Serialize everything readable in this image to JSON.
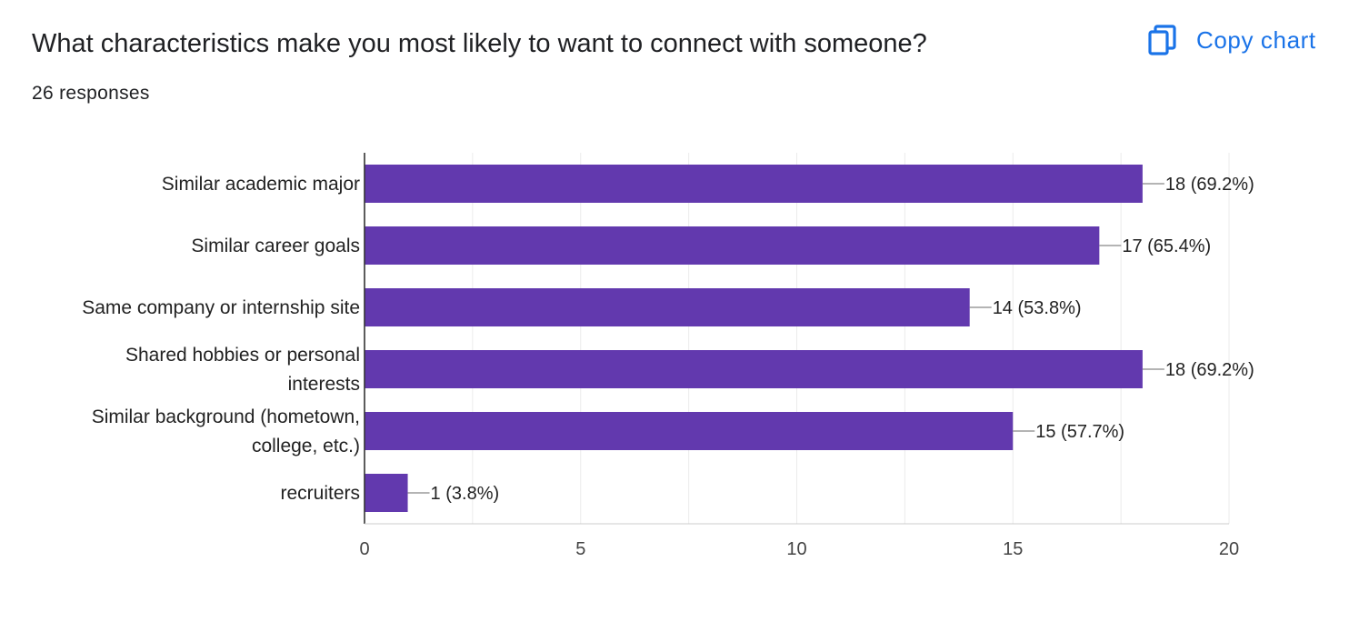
{
  "question": {
    "title": "What characteristics make you most likely to want to connect with someone?",
    "responses": "26 responses"
  },
  "actions": {
    "copy_chart_label": "Copy chart",
    "copy_icon": "copy-icon"
  },
  "colors": {
    "bar": "#6239ae",
    "accent": "#1a73e8",
    "grid": "#ebebeb",
    "axis": "#333333"
  },
  "chart_data": {
    "type": "bar",
    "orientation": "horizontal",
    "title": "",
    "xlabel": "",
    "ylabel": "",
    "categories": [
      [
        "Similar academic major"
      ],
      [
        "Similar career goals"
      ],
      [
        "Same company or internship site"
      ],
      [
        "Shared hobbies or personal",
        "interests"
      ],
      [
        "Similar background (hometown,",
        "college, etc.)"
      ],
      [
        "recruiters"
      ]
    ],
    "values": [
      18,
      17,
      14,
      18,
      15,
      1
    ],
    "data_labels": [
      "18 (69.2%)",
      "17 (65.4%)",
      "14 (53.8%)",
      "18 (69.2%)",
      "15 (57.7%)",
      "1 (3.8%)"
    ],
    "xlim": [
      0,
      20
    ],
    "x_ticks": [
      0,
      5,
      10,
      15,
      20
    ],
    "grid": true,
    "legend": "none"
  }
}
